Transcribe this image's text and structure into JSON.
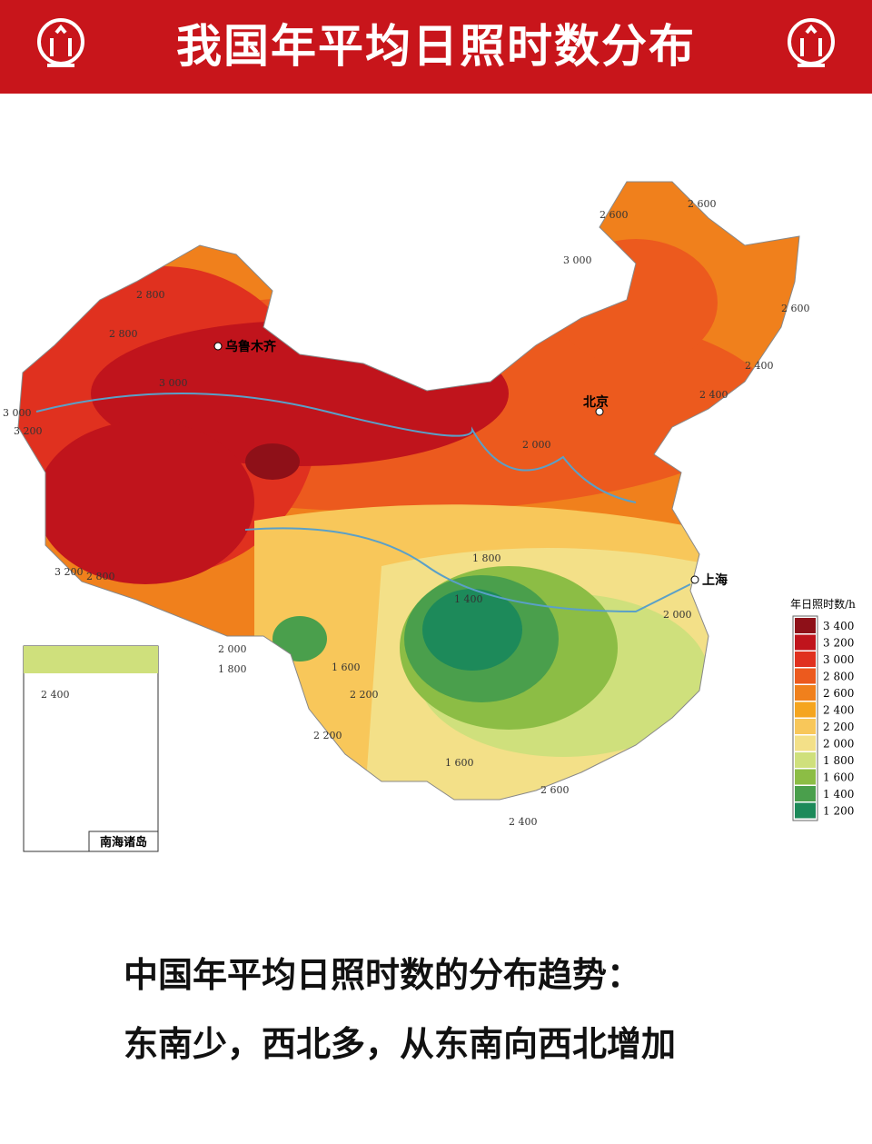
{
  "header": {
    "title": "我国年平均日照时数分布"
  },
  "map": {
    "cities": [
      "乌鲁木齐",
      "北京",
      "上海"
    ],
    "contour_labels": [
      "2 800",
      "2 800",
      "2 600",
      "2 600",
      "3 000",
      "3 000",
      "3 200",
      "3 200",
      "2 800",
      "3 000",
      "2 600",
      "2 400",
      "2 400",
      "2 200",
      "2 000",
      "1 800",
      "1 600",
      "1 400",
      "1 600",
      "2 000",
      "2 400",
      "2 000",
      "1 800",
      "2 200",
      "2 600",
      "2 400"
    ],
    "inset_label": "南海诸岛",
    "legend": {
      "title": "年日照时数/h",
      "items": [
        {
          "label": "3 400",
          "color": "#8e1018"
        },
        {
          "label": "3 200",
          "color": "#c0141c"
        },
        {
          "label": "3 000",
          "color": "#e0311f"
        },
        {
          "label": "2 800",
          "color": "#ec5a1e"
        },
        {
          "label": "2 600",
          "color": "#f0801c"
        },
        {
          "label": "2 400",
          "color": "#f5a51f"
        },
        {
          "label": "2 200",
          "color": "#f8c75a"
        },
        {
          "label": "2 000",
          "color": "#f3e088"
        },
        {
          "label": "1 800",
          "color": "#cfe07c"
        },
        {
          "label": "1 600",
          "color": "#8cbd45"
        },
        {
          "label": "1 400",
          "color": "#4a9f4c"
        },
        {
          "label": "1 200",
          "color": "#1d8a5a"
        }
      ]
    }
  },
  "caption": {
    "line1": "中国年平均日照时数的分布趋势：",
    "line2": "东南少，西北多，从东南向西北增加"
  }
}
